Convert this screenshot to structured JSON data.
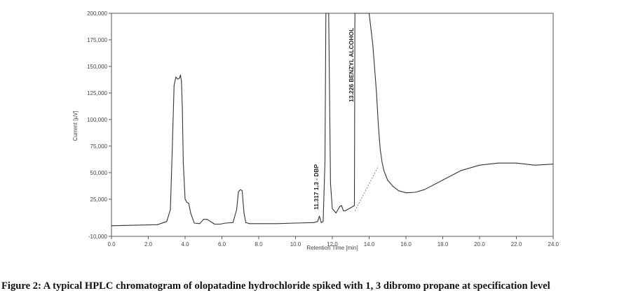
{
  "caption": "Figure 2: A typical HPLC chromatogram of olopatadine hydrochloride spiked with 1, 3 dibromo propane at specification level",
  "chart_data": {
    "type": "line",
    "xlabel": "Retention Time [min]",
    "ylabel": "Current [µV]",
    "xlim": [
      0.0,
      24.0
    ],
    "ylim": [
      -10000,
      200000
    ],
    "x_ticks": [
      "0.0",
      "2.0",
      "4.0",
      "6.0",
      "8.0",
      "10.0",
      "12.0",
      "14.0",
      "16.0",
      "18.0",
      "20.0",
      "22.0",
      "24.0"
    ],
    "y_ticks": [
      "-10,000",
      "25,000",
      "50,000",
      "75,000",
      "100,000",
      "125,000",
      "150,000",
      "175,000",
      "200,000"
    ],
    "grid": false,
    "annotations": [
      {
        "text": "11.317 1,3 - DBP",
        "x": 11.317
      },
      {
        "text": "13.226 BENZYL ALCOHOL",
        "x": 13.226
      }
    ],
    "colors": {
      "trace": "#333333",
      "axis": "#555555",
      "baseline": "#666666"
    },
    "series": [
      {
        "x": [
          0.0,
          2.5,
          3.0,
          3.2,
          3.3,
          3.4,
          3.5,
          3.6,
          3.7,
          3.75,
          3.8,
          3.85,
          3.9,
          4.0,
          4.1,
          4.2,
          4.3,
          4.5,
          4.8,
          5.0,
          5.2,
          5.6,
          5.9,
          6.2,
          6.6,
          6.8,
          6.9,
          7.0,
          7.1,
          7.2,
          7.3,
          7.4,
          7.5,
          8.0,
          9.0,
          10.0,
          11.0,
          11.2,
          11.3,
          11.35,
          11.4,
          11.5,
          11.6,
          11.65,
          11.7,
          11.8,
          11.9,
          12.0,
          12.2,
          12.4,
          12.5,
          12.6,
          12.7,
          12.9,
          13.0,
          13.1,
          13.2,
          13.226,
          13.3,
          13.5,
          13.8,
          14.0,
          14.2,
          14.4,
          14.5,
          14.6,
          14.7,
          14.8,
          15.0,
          15.3,
          15.6,
          16.0,
          16.5,
          17.0,
          18.0,
          19.0,
          20.0,
          21.0,
          22.0,
          23.0,
          24.0
        ],
        "y": [
          0,
          1000,
          4000,
          15000,
          70000,
          132000,
          140000,
          138000,
          139000,
          142000,
          136000,
          110000,
          60000,
          25000,
          22000,
          21000,
          12000,
          2500,
          2000,
          6000,
          6000,
          1500,
          1500,
          2500,
          3000,
          15000,
          32000,
          34000,
          33000,
          12000,
          3000,
          2500,
          2000,
          2000,
          2000,
          2500,
          3000,
          4000,
          9000,
          6000,
          3000,
          4000,
          60000,
          200000,
          200000,
          200000,
          40000,
          16000,
          12000,
          18000,
          19000,
          14000,
          14000,
          16000,
          17000,
          18000,
          19000,
          200000,
          200000,
          200000,
          200000,
          200000,
          170000,
          125000,
          95000,
          72000,
          60000,
          52000,
          43000,
          37000,
          33000,
          31000,
          31500,
          34000,
          43000,
          52000,
          57000,
          59000,
          59000,
          57000,
          58000
        ]
      }
    ],
    "baselines": [
      {
        "x": [
          13.226,
          14.5
        ],
        "y": [
          14000,
          56000
        ]
      }
    ]
  }
}
